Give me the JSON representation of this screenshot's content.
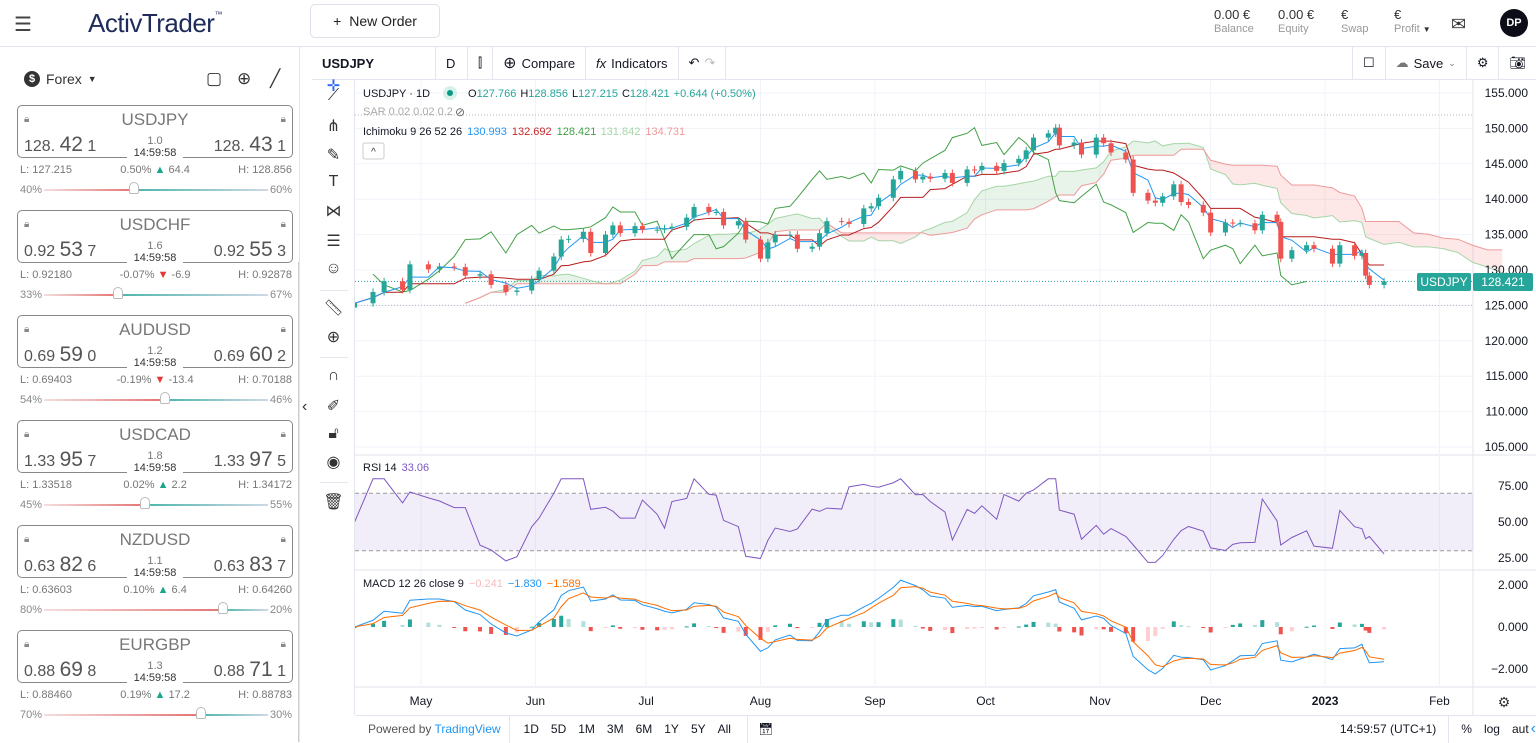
{
  "header": {
    "app_name": "ActivTrader",
    "trademark": "™",
    "new_order_label": "New Order",
    "stats": [
      {
        "value": "0.00 €",
        "label": "Balance"
      },
      {
        "value": "0.00 €",
        "label": "Equity"
      },
      {
        "value": "€",
        "label": "Swap"
      },
      {
        "value": "€",
        "label": "Profit"
      }
    ],
    "avatar_initials": "DP"
  },
  "left_panel": {
    "category": "Forex",
    "pairs": [
      {
        "symbol": "USDJPY",
        "bid": [
          "128.",
          "42",
          "1"
        ],
        "ask": [
          "128.",
          "43",
          "1"
        ],
        "spread": "1.0",
        "time": "14:59:58",
        "low": "L: 127.215",
        "change_pct": "0.50%",
        "direction": "up",
        "change_pts": "64.4",
        "high": "H: 128.856",
        "sell_pct": "40%",
        "buy_pct": "60%",
        "sell": 40
      },
      {
        "symbol": "USDCHF",
        "bid": [
          "0.92",
          "53",
          "7"
        ],
        "ask": [
          "0.92",
          "55",
          "3"
        ],
        "spread": "1.6",
        "time": "14:59:58",
        "low": "L: 0.92180",
        "change_pct": "-0.07%",
        "direction": "down",
        "change_pts": "-6.9",
        "high": "H: 0.92878",
        "sell_pct": "33%",
        "buy_pct": "67%",
        "sell": 33
      },
      {
        "symbol": "AUDUSD",
        "bid": [
          "0.69",
          "59",
          "0"
        ],
        "ask": [
          "0.69",
          "60",
          "2"
        ],
        "spread": "1.2",
        "time": "14:59:58",
        "low": "L: 0.69403",
        "change_pct": "-0.19%",
        "direction": "down",
        "change_pts": "-13.4",
        "high": "H: 0.70188",
        "sell_pct": "54%",
        "buy_pct": "46%",
        "sell": 54
      },
      {
        "symbol": "USDCAD",
        "bid": [
          "1.33",
          "95",
          "7"
        ],
        "ask": [
          "1.33",
          "97",
          "5"
        ],
        "spread": "1.8",
        "time": "14:59:58",
        "low": "L: 1.33518",
        "change_pct": "0.02%",
        "direction": "up",
        "change_pts": "2.2",
        "high": "H: 1.34172",
        "sell_pct": "45%",
        "buy_pct": "55%",
        "sell": 45
      },
      {
        "symbol": "NZDUSD",
        "bid": [
          "0.63",
          "82",
          "6"
        ],
        "ask": [
          "0.63",
          "83",
          "7"
        ],
        "spread": "1.1",
        "time": "14:59:58",
        "low": "L: 0.63603",
        "change_pct": "0.10%",
        "direction": "up",
        "change_pts": "6.4",
        "high": "H: 0.64260",
        "sell_pct": "80%",
        "buy_pct": "20%",
        "sell": 80
      },
      {
        "symbol": "EURGBP",
        "bid": [
          "0.88",
          "69",
          "8"
        ],
        "ask": [
          "0.88",
          "71",
          "1"
        ],
        "spread": "1.3",
        "time": "14:59:58",
        "low": "L: 0.88460",
        "change_pct": "0.19%",
        "direction": "up",
        "change_pts": "17.2",
        "high": "H: 0.88783",
        "sell_pct": "70%",
        "buy_pct": "30%",
        "sell": 70
      }
    ]
  },
  "toolbar": {
    "symbol": "USDJPY",
    "interval": "D",
    "compare": "Compare",
    "indicators": "Indicators",
    "save": "Save"
  },
  "legend": {
    "title": "USDJPY · 1D",
    "o_label": "O",
    "o": "127.766",
    "h_label": "H",
    "h": "128.856",
    "l_label": "L",
    "l": "127.215",
    "c_label": "C",
    "c": "128.421",
    "change": "+0.644 (+0.50%)",
    "sar": "SAR 0.02 0.02 0.2",
    "ichimoku": "Ichimoku 9 26 52 26",
    "ich_vals": [
      "130.993",
      "132.692",
      "128.421",
      "131.842",
      "134.731"
    ],
    "rsi": "RSI 14",
    "rsi_val": "33.06",
    "macd": "MACD 12 26 close 9",
    "macd_vals": [
      "−0.241",
      "−1.830",
      "−1.589"
    ]
  },
  "last_price": {
    "symbol": "USDJPY",
    "value": "128.421"
  },
  "bottom_bar": {
    "powered": "Powered by ",
    "tradingview": "TradingView",
    "ranges": [
      "1D",
      "5D",
      "1M",
      "3M",
      "6M",
      "1Y",
      "5Y",
      "All"
    ],
    "clock": "14:59:57 (UTC+1)",
    "pct": "%",
    "log": "log",
    "auto": "aut"
  },
  "colors": {
    "up": "#26a69a",
    "down": "#ef5350",
    "conversion": "#2196f3",
    "base": "#b71c1c",
    "lagging": "#43a047",
    "span_a": "#a5d6a7",
    "span_b": "#ef9a9a",
    "rsi": "#7e57c2",
    "macd": "#2196f3",
    "signal": "#ff6d00"
  },
  "chart_data": {
    "type": "candlestick",
    "symbol": "USDJPY",
    "interval": "1D",
    "ylim": [
      105,
      157
    ],
    "y_ticks": [
      "155.000",
      "150.000",
      "145.000",
      "140.000",
      "135.000",
      "130.000",
      "125.000",
      "120.000",
      "115.000",
      "110.000",
      "105.000"
    ],
    "x_ticks": [
      [
        "2022-05-01",
        "May"
      ],
      [
        "2022-06-01",
        "Jun"
      ],
      [
        "2022-07-01",
        "Jul"
      ],
      [
        "2022-08-01",
        "Aug"
      ],
      [
        "2022-09-01",
        "Sep"
      ],
      [
        "2022-10-01",
        "Oct"
      ],
      [
        "2022-11-01",
        "Nov"
      ],
      [
        "2022-12-01",
        "Dec"
      ],
      [
        "2023-01-01",
        "2023"
      ],
      [
        "2023-02-01",
        "Feb"
      ]
    ],
    "reference_lines": [
      151.9,
      125.0
    ],
    "closes": [
      [
        "2022-04-13",
        125.3
      ],
      [
        "2022-04-18",
        126.9
      ],
      [
        "2022-04-21",
        128.4
      ],
      [
        "2022-04-26",
        127.2
      ],
      [
        "2022-04-28",
        130.8
      ],
      [
        "2022-05-03",
        130.1
      ],
      [
        "2022-05-06",
        130.5
      ],
      [
        "2022-05-10",
        130.4
      ],
      [
        "2022-05-13",
        129.2
      ],
      [
        "2022-05-17",
        129.4
      ],
      [
        "2022-05-20",
        127.9
      ],
      [
        "2022-05-24",
        126.9
      ],
      [
        "2022-05-27",
        127.1
      ],
      [
        "2022-05-31",
        128.7
      ],
      [
        "2022-06-02",
        129.9
      ],
      [
        "2022-06-06",
        131.9
      ],
      [
        "2022-06-08",
        134.3
      ],
      [
        "2022-06-10",
        134.4
      ],
      [
        "2022-06-14",
        135.4
      ],
      [
        "2022-06-16",
        132.4
      ],
      [
        "2022-06-20",
        135.0
      ],
      [
        "2022-06-22",
        136.3
      ],
      [
        "2022-06-24",
        135.2
      ],
      [
        "2022-06-28",
        136.2
      ],
      [
        "2022-06-30",
        135.7
      ],
      [
        "2022-07-04",
        135.7
      ],
      [
        "2022-07-06",
        135.9
      ],
      [
        "2022-07-08",
        136.1
      ],
      [
        "2022-07-12",
        137.4
      ],
      [
        "2022-07-14",
        138.9
      ],
      [
        "2022-07-18",
        138.2
      ],
      [
        "2022-07-20",
        138.2
      ],
      [
        "2022-07-22",
        136.3
      ],
      [
        "2022-07-26",
        136.9
      ],
      [
        "2022-07-28",
        134.3
      ],
      [
        "2022-08-01",
        131.6
      ],
      [
        "2022-08-03",
        133.9
      ],
      [
        "2022-08-05",
        135.0
      ],
      [
        "2022-08-09",
        135.0
      ],
      [
        "2022-08-11",
        133.0
      ],
      [
        "2022-08-15",
        133.3
      ],
      [
        "2022-08-17",
        135.2
      ],
      [
        "2022-08-19",
        136.9
      ],
      [
        "2022-08-23",
        136.8
      ],
      [
        "2022-08-25",
        136.5
      ],
      [
        "2022-08-29",
        138.7
      ],
      [
        "2022-08-31",
        139.0
      ],
      [
        "2022-09-02",
        140.2
      ],
      [
        "2022-09-06",
        142.8
      ],
      [
        "2022-09-08",
        144.0
      ],
      [
        "2022-09-12",
        142.8
      ],
      [
        "2022-09-14",
        143.2
      ],
      [
        "2022-09-16",
        142.9
      ],
      [
        "2022-09-20",
        143.7
      ],
      [
        "2022-09-22",
        142.3
      ],
      [
        "2022-09-26",
        144.2
      ],
      [
        "2022-09-28",
        144.1
      ],
      [
        "2022-09-30",
        144.7
      ],
      [
        "2022-10-04",
        144.0
      ],
      [
        "2022-10-06",
        145.1
      ],
      [
        "2022-10-10",
        145.7
      ],
      [
        "2022-10-12",
        146.9
      ],
      [
        "2022-10-14",
        148.7
      ],
      [
        "2022-10-18",
        149.3
      ],
      [
        "2022-10-20",
        150.1
      ],
      [
        "2022-10-21",
        147.6
      ],
      [
        "2022-10-25",
        148.0
      ],
      [
        "2022-10-27",
        146.3
      ],
      [
        "2022-10-31",
        148.7
      ],
      [
        "2022-11-02",
        147.9
      ],
      [
        "2022-11-04",
        146.6
      ],
      [
        "2022-11-08",
        145.6
      ],
      [
        "2022-11-10",
        140.9
      ],
      [
        "2022-11-14",
        139.8
      ],
      [
        "2022-11-16",
        139.5
      ],
      [
        "2022-11-18",
        140.4
      ],
      [
        "2022-11-21",
        142.1
      ],
      [
        "2022-11-23",
        139.6
      ],
      [
        "2022-11-25",
        139.2
      ],
      [
        "2022-11-29",
        138.1
      ],
      [
        "2022-12-01",
        135.3
      ],
      [
        "2022-12-05",
        136.7
      ],
      [
        "2022-12-07",
        136.6
      ],
      [
        "2022-12-09",
        136.6
      ],
      [
        "2022-12-13",
        135.6
      ],
      [
        "2022-12-15",
        137.8
      ],
      [
        "2022-12-19",
        136.8
      ],
      [
        "2022-12-20",
        131.6
      ],
      [
        "2022-12-23",
        132.8
      ],
      [
        "2022-12-27",
        133.5
      ],
      [
        "2022-12-29",
        133.0
      ],
      [
        "2023-01-03",
        130.9
      ],
      [
        "2023-01-05",
        133.5
      ],
      [
        "2023-01-09",
        132.0
      ],
      [
        "2023-01-11",
        132.4
      ],
      [
        "2023-01-12",
        129.2
      ],
      [
        "2023-01-13",
        127.9
      ],
      [
        "2023-01-17",
        128.4
      ]
    ],
    "rsi": {
      "ylim": [
        0,
        100
      ],
      "band": [
        30,
        70
      ],
      "ticks": [
        "75.00",
        "50.00",
        "25.00"
      ]
    },
    "macd": {
      "ticks": [
        "2.000",
        "0.000",
        "−2.000"
      ]
    }
  }
}
